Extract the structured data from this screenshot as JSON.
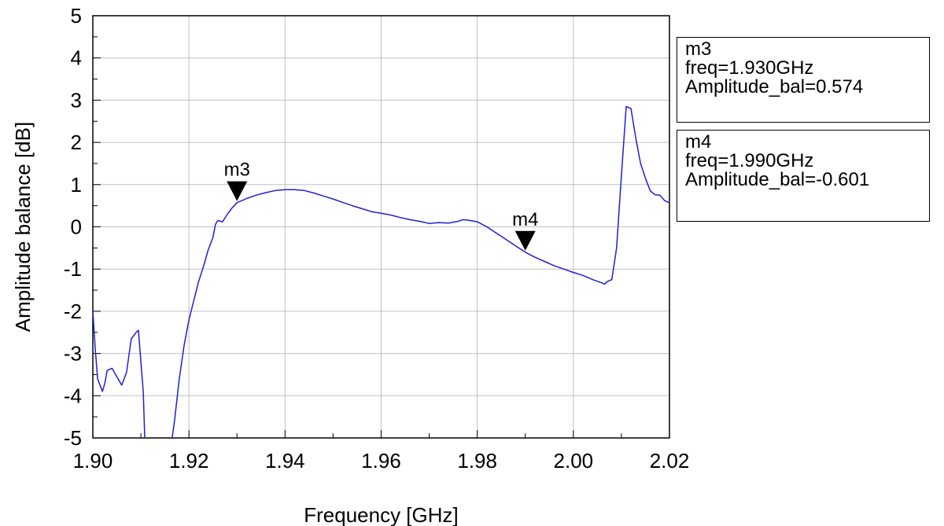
{
  "chart_data": {
    "type": "line",
    "xlabel": "Frequency [GHz]",
    "ylabel": "Amplitude balance [dB]",
    "xlim": [
      1.9,
      2.02
    ],
    "ylim": [
      -5,
      5
    ],
    "x_ticks": [
      "1.90",
      "1.92",
      "1.94",
      "1.96",
      "1.98",
      "2.00",
      "2.02"
    ],
    "y_ticks": [
      "5",
      "4",
      "3",
      "2",
      "1",
      "0",
      "-1",
      "-2",
      "-3",
      "-4",
      "-5"
    ],
    "grid": true,
    "line_color": "#1f1fd6",
    "series": [
      {
        "points": [
          [
            1.9,
            -2.0
          ],
          [
            1.9005,
            -2.9
          ],
          [
            1.901,
            -3.6
          ],
          [
            1.902,
            -3.9
          ],
          [
            1.9025,
            -3.7
          ],
          [
            1.903,
            -3.4
          ],
          [
            1.904,
            -3.35
          ],
          [
            1.905,
            -3.55
          ],
          [
            1.906,
            -3.75
          ],
          [
            1.907,
            -3.45
          ],
          [
            1.908,
            -2.65
          ],
          [
            1.909,
            -2.5
          ],
          [
            1.9095,
            -2.45
          ],
          [
            1.91,
            -3.2
          ],
          [
            1.9105,
            -3.9
          ],
          [
            1.9108,
            -5.0
          ]
        ]
      },
      {
        "points": [
          [
            1.9165,
            -5.0
          ],
          [
            1.917,
            -4.6
          ],
          [
            1.918,
            -3.6
          ],
          [
            1.919,
            -2.8
          ],
          [
            1.92,
            -2.2
          ],
          [
            1.921,
            -1.75
          ],
          [
            1.922,
            -1.3
          ],
          [
            1.923,
            -0.95
          ],
          [
            1.924,
            -0.55
          ],
          [
            1.925,
            -0.25
          ],
          [
            1.9255,
            0.05
          ],
          [
            1.926,
            0.15
          ],
          [
            1.927,
            0.12
          ],
          [
            1.928,
            0.3
          ],
          [
            1.929,
            0.45
          ],
          [
            1.93,
            0.574
          ],
          [
            1.931,
            0.62
          ],
          [
            1.932,
            0.67
          ],
          [
            1.934,
            0.75
          ],
          [
            1.936,
            0.81
          ],
          [
            1.938,
            0.86
          ],
          [
            1.94,
            0.88
          ],
          [
            1.942,
            0.88
          ],
          [
            1.944,
            0.86
          ],
          [
            1.946,
            0.8
          ],
          [
            1.948,
            0.73
          ],
          [
            1.95,
            0.66
          ],
          [
            1.952,
            0.58
          ],
          [
            1.954,
            0.5
          ],
          [
            1.956,
            0.43
          ],
          [
            1.958,
            0.36
          ],
          [
            1.96,
            0.32
          ],
          [
            1.962,
            0.28
          ],
          [
            1.964,
            0.22
          ],
          [
            1.966,
            0.17
          ],
          [
            1.968,
            0.13
          ],
          [
            1.97,
            0.08
          ],
          [
            1.972,
            0.1
          ],
          [
            1.974,
            0.09
          ],
          [
            1.976,
            0.13
          ],
          [
            1.977,
            0.17
          ],
          [
            1.978,
            0.16
          ],
          [
            1.98,
            0.12
          ],
          [
            1.982,
            0.0
          ],
          [
            1.984,
            -0.15
          ],
          [
            1.986,
            -0.3
          ],
          [
            1.988,
            -0.45
          ],
          [
            1.99,
            -0.601
          ],
          [
            1.992,
            -0.72
          ],
          [
            1.994,
            -0.82
          ],
          [
            1.996,
            -0.92
          ],
          [
            1.998,
            -1.0
          ],
          [
            2.0,
            -1.08
          ],
          [
            2.002,
            -1.15
          ],
          [
            2.004,
            -1.25
          ],
          [
            2.006,
            -1.33
          ],
          [
            2.0065,
            -1.36
          ],
          [
            2.007,
            -1.3
          ],
          [
            2.008,
            -1.25
          ],
          [
            2.009,
            -0.5
          ],
          [
            2.01,
            1.2
          ],
          [
            2.011,
            2.85
          ],
          [
            2.012,
            2.8
          ],
          [
            2.013,
            2.1
          ],
          [
            2.014,
            1.5
          ],
          [
            2.015,
            1.15
          ],
          [
            2.016,
            0.85
          ],
          [
            2.017,
            0.76
          ],
          [
            2.018,
            0.75
          ],
          [
            2.019,
            0.62
          ],
          [
            2.02,
            0.57
          ]
        ]
      }
    ],
    "markers": [
      {
        "name": "m3",
        "x": 1.93,
        "y": 0.574,
        "box_lines": [
          "m3",
          "freq=1.930GHz",
          "Amplitude_bal=0.574"
        ]
      },
      {
        "name": "m4",
        "x": 1.99,
        "y": -0.601,
        "box_lines": [
          "m4",
          "freq=1.990GHz",
          "Amplitude_bal=-0.601"
        ]
      }
    ]
  }
}
